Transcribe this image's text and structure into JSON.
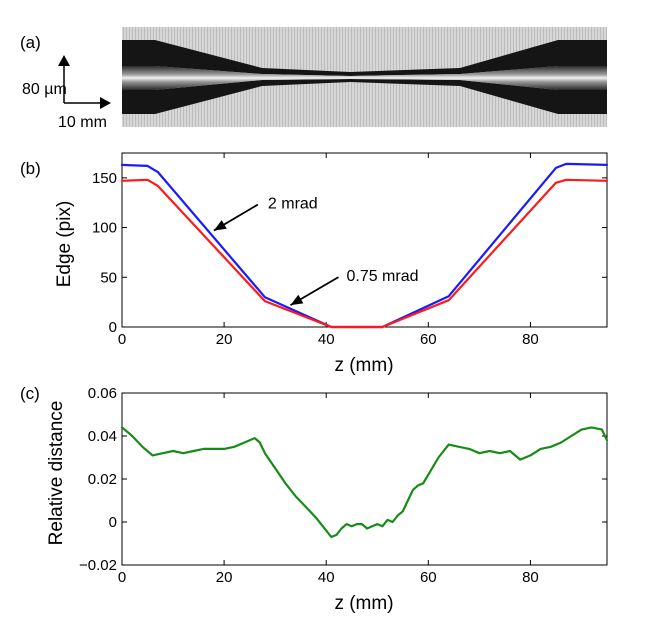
{
  "panels": {
    "a": {
      "label": "(a)",
      "scale_vertical": "80 µm",
      "scale_horizontal": "10 mm"
    }
  },
  "chart_data": [
    {
      "panel": "(b)",
      "type": "line",
      "xlabel": "z (mm)",
      "ylabel": "Edge (pix)",
      "xlim": [
        0,
        95
      ],
      "ylim": [
        0,
        175
      ],
      "xticks": [
        0,
        20,
        40,
        60,
        80
      ],
      "yticks": [
        0,
        50,
        100,
        150
      ],
      "grid": false,
      "series": [
        {
          "color": "#1a1aff",
          "x": [
            0,
            5,
            7,
            28,
            41,
            51,
            64,
            85,
            87,
            95
          ],
          "values": [
            163,
            162,
            156,
            30,
            0,
            0,
            31,
            160,
            164,
            163
          ]
        },
        {
          "color": "#ff1a1a",
          "x": [
            0,
            5,
            7,
            28,
            41,
            51,
            64,
            85,
            87,
            95
          ],
          "values": [
            147,
            148,
            142,
            26,
            0,
            0,
            27,
            145,
            148,
            147
          ]
        }
      ],
      "annotations": [
        {
          "text": "2 mrad",
          "x": 18,
          "y": 97
        },
        {
          "text": "0.75 mrad",
          "x": 33,
          "y": 22
        }
      ]
    },
    {
      "panel": "(c)",
      "type": "line",
      "xlabel": "z (mm)",
      "ylabel": "Relative distance",
      "xlim": [
        0,
        95
      ],
      "ylim": [
        -0.02,
        0.06
      ],
      "xticks": [
        0,
        20,
        40,
        60,
        80
      ],
      "yticks": [
        -0.02,
        0,
        0.02,
        0.04,
        0.06
      ],
      "ytick_labels": [
        "−0.02",
        "0",
        "0.02",
        "0.04",
        "0.06"
      ],
      "grid": false,
      "series": [
        {
          "color": "#168c16",
          "x": [
            0,
            2,
            4,
            6,
            8,
            10,
            12,
            14,
            16,
            18,
            20,
            22,
            24,
            26,
            27,
            28,
            30,
            32,
            34,
            36,
            38,
            39,
            40,
            41,
            42,
            43,
            44,
            45,
            46,
            47,
            48,
            49,
            50,
            51,
            52,
            53,
            54,
            55,
            56,
            57,
            58,
            59,
            60,
            62,
            64,
            66,
            68,
            70,
            72,
            74,
            76,
            78,
            80,
            82,
            84,
            86,
            88,
            90,
            92,
            94,
            95
          ],
          "values": [
            0.044,
            0.04,
            0.035,
            0.031,
            0.032,
            0.033,
            0.032,
            0.033,
            0.034,
            0.034,
            0.034,
            0.035,
            0.037,
            0.039,
            0.037,
            0.032,
            0.025,
            0.018,
            0.012,
            0.007,
            0.002,
            -0.001,
            -0.004,
            -0.007,
            -0.006,
            -0.003,
            -0.001,
            -0.002,
            -0.001,
            -0.001,
            -0.003,
            -0.002,
            -0.001,
            -0.002,
            0.001,
            0.0,
            0.003,
            0.005,
            0.01,
            0.015,
            0.017,
            0.018,
            0.022,
            0.03,
            0.036,
            0.035,
            0.034,
            0.032,
            0.033,
            0.032,
            0.033,
            0.029,
            0.031,
            0.034,
            0.035,
            0.037,
            0.04,
            0.043,
            0.044,
            0.043,
            0.038
          ]
        }
      ]
    }
  ]
}
